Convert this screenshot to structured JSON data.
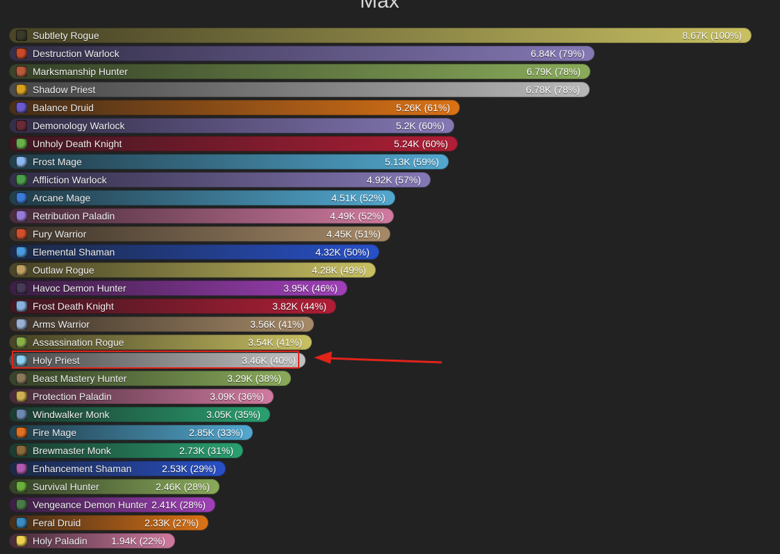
{
  "chart_data": {
    "type": "bar",
    "orientation": "horizontal",
    "title": "Max",
    "xlabel": "",
    "ylabel": "",
    "xlim": [
      0,
      8670
    ],
    "grid": false,
    "legend": "none",
    "highlighted": "Holy Priest",
    "series": [
      {
        "name": "Max",
        "items": [
          {
            "spec": "Subtlety Rogue",
            "value": 8670,
            "label": "8.67K (100%)",
            "color": "#c8c062",
            "dark": "#4a4628",
            "icon": "subtlety-rogue-icon",
            "icon_color": "#3a3a2a"
          },
          {
            "spec": "Destruction Warlock",
            "value": 6840,
            "label": "6.84K (79%)",
            "color": "#8578b5",
            "dark": "#35304a",
            "icon": "destruction-warlock-icon",
            "icon_color": "#c84a2a"
          },
          {
            "spec": "Marksmanship Hunter",
            "value": 6790,
            "label": "6.79K (78%)",
            "color": "#8aab5a",
            "dark": "#38452a",
            "icon": "marksmanship-hunter-icon",
            "icon_color": "#b85a3a"
          },
          {
            "spec": "Shadow Priest",
            "value": 6780,
            "label": "6.78K (78%)",
            "color": "#b8b8b8",
            "dark": "#4a4a4a",
            "icon": "shadow-priest-icon",
            "icon_color": "#d8a020"
          },
          {
            "spec": "Balance Druid",
            "value": 5260,
            "label": "5.26K (61%)",
            "color": "#db7216",
            "dark": "#4a3018",
            "icon": "balance-druid-icon",
            "icon_color": "#6a5ad0"
          },
          {
            "spec": "Demonology Warlock",
            "value": 5200,
            "label": "5.2K (60%)",
            "color": "#8578b5",
            "dark": "#35304a",
            "icon": "demonology-warlock-icon",
            "icon_color": "#6a2a3a"
          },
          {
            "spec": "Unholy Death Knight",
            "value": 5240,
            "label": "5.24K (60%)",
            "color": "#b01e36",
            "dark": "#431822",
            "icon": "unholy-death-knight-icon",
            "icon_color": "#6ab04a"
          },
          {
            "spec": "Frost Mage",
            "value": 5130,
            "label": "5.13K (59%)",
            "color": "#52a8d0",
            "dark": "#23404d",
            "icon": "frost-mage-icon",
            "icon_color": "#8ab8f0"
          },
          {
            "spec": "Affliction Warlock",
            "value": 4920,
            "label": "4.92K (57%)",
            "color": "#8578b5",
            "dark": "#35304a",
            "icon": "affliction-warlock-icon",
            "icon_color": "#4aa04a"
          },
          {
            "spec": "Arcane Mage",
            "value": 4510,
            "label": "4.51K (52%)",
            "color": "#52a8d0",
            "dark": "#23404d",
            "icon": "arcane-mage-icon",
            "icon_color": "#3a7ad8"
          },
          {
            "spec": "Retribution Paladin",
            "value": 4490,
            "label": "4.49K (52%)",
            "color": "#d07aa0",
            "dark": "#4a2e3c",
            "icon": "retribution-paladin-icon",
            "icon_color": "#9a7ad8"
          },
          {
            "spec": "Fury Warrior",
            "value": 4450,
            "label": "4.45K (51%)",
            "color": "#a68a68",
            "dark": "#40362c",
            "icon": "fury-warrior-icon",
            "icon_color": "#d0502a"
          },
          {
            "spec": "Elemental Shaman",
            "value": 4320,
            "label": "4.32K (50%)",
            "color": "#2850c8",
            "dark": "#1c2a48",
            "icon": "elemental-shaman-icon",
            "icon_color": "#4a9ae0"
          },
          {
            "spec": "Outlaw Rogue",
            "value": 4280,
            "label": "4.28K (49%)",
            "color": "#c8c062",
            "dark": "#4a4628",
            "icon": "outlaw-rogue-icon",
            "icon_color": "#c0a060"
          },
          {
            "spec": "Havoc Demon Hunter",
            "value": 3950,
            "label": "3.95K (46%)",
            "color": "#a040b8",
            "dark": "#3e2046",
            "icon": "havoc-demon-hunter-icon",
            "icon_color": "#4a3a5a"
          },
          {
            "spec": "Frost Death Knight",
            "value": 3820,
            "label": "3.82K (44%)",
            "color": "#b01e36",
            "dark": "#431822",
            "icon": "frost-death-knight-icon",
            "icon_color": "#8ab0e0"
          },
          {
            "spec": "Arms Warrior",
            "value": 3560,
            "label": "3.56K (41%)",
            "color": "#a68a68",
            "dark": "#40362c",
            "icon": "arms-warrior-icon",
            "icon_color": "#9ab0d0"
          },
          {
            "spec": "Assassination Rogue",
            "value": 3540,
            "label": "3.54K (41%)",
            "color": "#c8c062",
            "dark": "#4a4628",
            "icon": "assassination-rogue-icon",
            "icon_color": "#8ab04a"
          },
          {
            "spec": "Holy Priest",
            "value": 3460,
            "label": "3.46K (40%)",
            "color": "#c2c2c2",
            "dark": "#505050",
            "icon": "holy-priest-icon",
            "icon_color": "#8ad0f0"
          },
          {
            "spec": "Beast Mastery Hunter",
            "value": 3290,
            "label": "3.29K (38%)",
            "color": "#8aab5a",
            "dark": "#38452a",
            "icon": "beast-mastery-hunter-icon",
            "icon_color": "#8a7a5a"
          },
          {
            "spec": "Protection Paladin",
            "value": 3090,
            "label": "3.09K (36%)",
            "color": "#d07aa0",
            "dark": "#4a2e3c",
            "icon": "protection-paladin-icon",
            "icon_color": "#d0b050"
          },
          {
            "spec": "Windwalker Monk",
            "value": 3050,
            "label": "3.05K (35%)",
            "color": "#2aa070",
            "dark": "#1c3e32",
            "icon": "windwalker-monk-icon",
            "icon_color": "#6a8ab0"
          },
          {
            "spec": "Fire Mage",
            "value": 2850,
            "label": "2.85K (33%)",
            "color": "#52a8d0",
            "dark": "#23404d",
            "icon": "fire-mage-icon",
            "icon_color": "#e07020"
          },
          {
            "spec": "Brewmaster Monk",
            "value": 2730,
            "label": "2.73K (31%)",
            "color": "#2aa070",
            "dark": "#1c3e32",
            "icon": "brewmaster-monk-icon",
            "icon_color": "#8a6a3a"
          },
          {
            "spec": "Enhancement Shaman",
            "value": 2530,
            "label": "2.53K (29%)",
            "color": "#2850c8",
            "dark": "#1c2a48",
            "icon": "enhancement-shaman-icon",
            "icon_color": "#b05ab0"
          },
          {
            "spec": "Survival Hunter",
            "value": 2460,
            "label": "2.46K (28%)",
            "color": "#8aab5a",
            "dark": "#38452a",
            "icon": "survival-hunter-icon",
            "icon_color": "#6ab03a"
          },
          {
            "spec": "Vengeance Demon Hunter",
            "value": 2410,
            "label": "2.41K (28%)",
            "color": "#a040b8",
            "dark": "#3e2046",
            "icon": "vengeance-demon-hunter-icon",
            "icon_color": "#4a7a4a"
          },
          {
            "spec": "Feral Druid",
            "value": 2330,
            "label": "2.33K (27%)",
            "color": "#db7216",
            "dark": "#4a3018",
            "icon": "feral-druid-icon",
            "icon_color": "#3a8ac0"
          },
          {
            "spec": "Holy Paladin",
            "value": 1940,
            "label": "1.94K (22%)",
            "color": "#d07aa0",
            "dark": "#4a2e3c",
            "icon": "holy-paladin-icon",
            "icon_color": "#f0d050"
          }
        ]
      }
    ]
  }
}
